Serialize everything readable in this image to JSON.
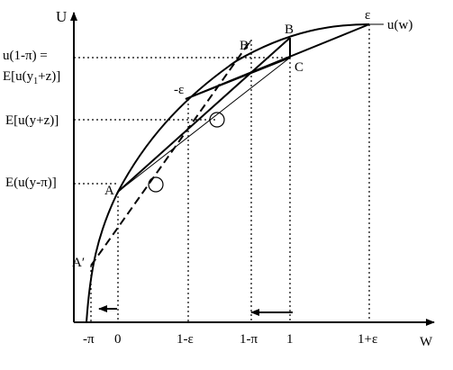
{
  "figure": {
    "axis_labels": {
      "y": "U",
      "x": "W"
    },
    "curve_label": "u(w)",
    "point_labels": {
      "A": "A",
      "A_prime": "A′",
      "B": "B",
      "B_prime": "B′",
      "C": "C",
      "eps": "ε",
      "neg_eps": "-ε"
    },
    "y_ticks": {
      "u1": "u(1-π) =",
      "u1b_pre": "E[u(y",
      "u1b_sub": "1",
      "u1b_post": "+z)]",
      "u2": "E[u(y+z)]",
      "u3": "E(u(y-π)]"
    },
    "x_ticks": [
      "-π",
      "0",
      "1-ε",
      "1-π",
      "1",
      "1+ε"
    ],
    "colors": {
      "ink": "#000000",
      "background": "#ffffff"
    }
  }
}
